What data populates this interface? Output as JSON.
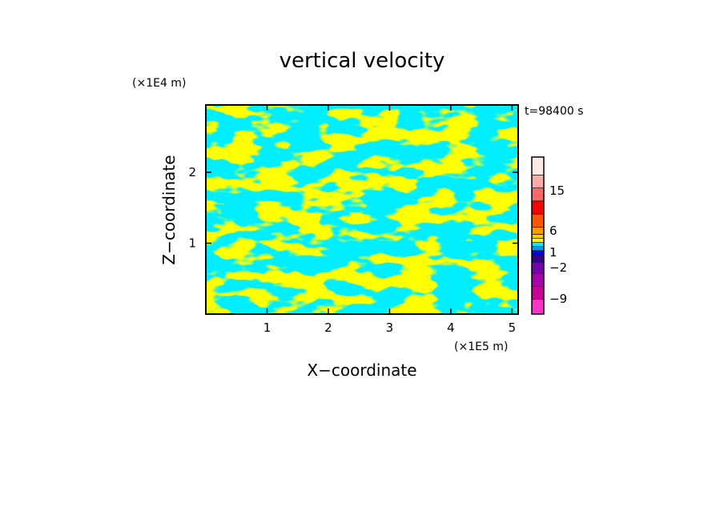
{
  "chart_data": {
    "type": "heatmap",
    "title": "vertical velocity",
    "xlabel": "X−coordinate",
    "ylabel": "Z−coordinate",
    "x_unit": "(×1E5 m)",
    "y_unit": "(×1E4 m)",
    "time_label": "t=98400 s",
    "xlim": [
      0,
      5.1
    ],
    "ylim": [
      0,
      2.95
    ],
    "x_ticks": [
      1,
      2,
      3,
      4,
      5
    ],
    "y_ticks": [
      1,
      2
    ],
    "grid": false,
    "colorbar": {
      "position": "right",
      "tick_labels": [
        "15",
        "6",
        "1",
        "−2",
        "−9"
      ],
      "colors": [
        "#ff33cc",
        "#cc0099",
        "#aa00aa",
        "#7700aa",
        "#330099",
        "#0000ff",
        "#0099ff",
        "#00eeff",
        "#ffff00",
        "#ffcc00",
        "#ff9900",
        "#ff5500",
        "#ff0000",
        "#ff6666",
        "#ffaaaa",
        "#ffe8e8"
      ]
    },
    "dominant_colors": {
      "positive": "#ffff00",
      "negative": "#00eeff"
    }
  }
}
